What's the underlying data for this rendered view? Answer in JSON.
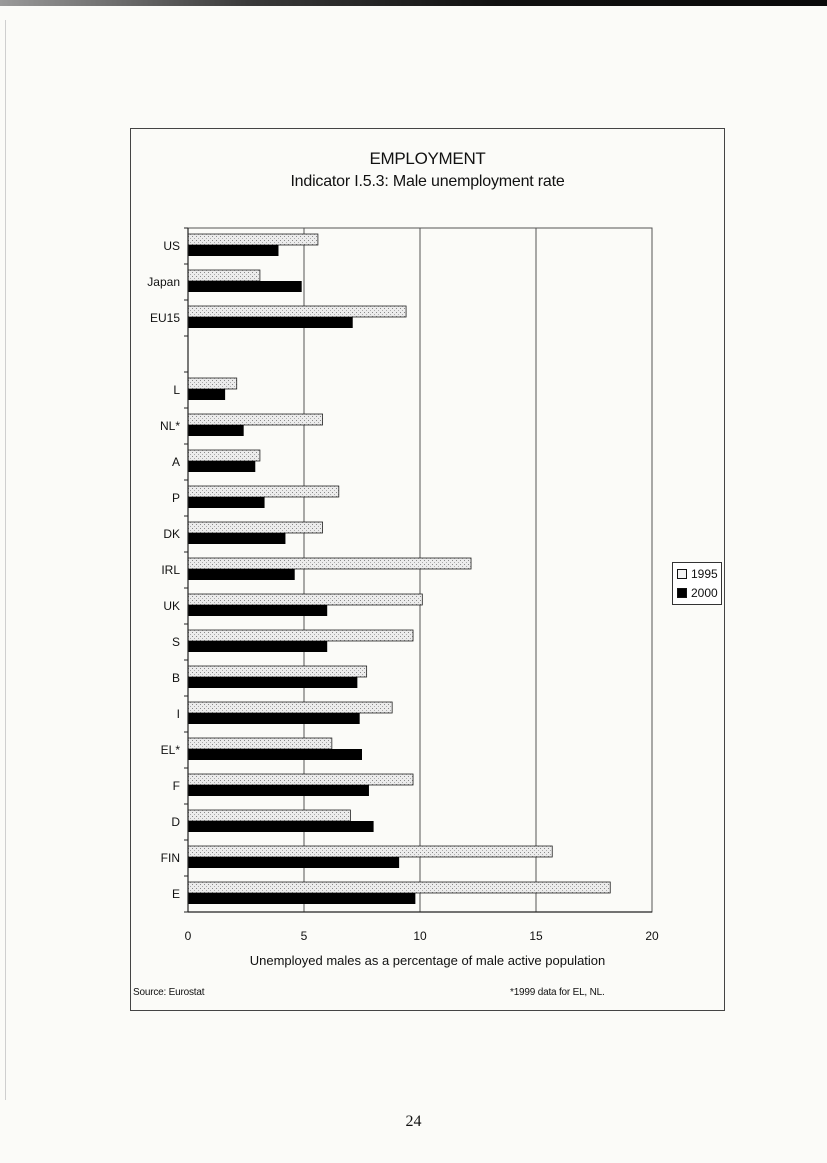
{
  "page_number": "24",
  "footer": {
    "source": "Source: Eurostat",
    "note": "*1999 data for EL, NL."
  },
  "colors": {
    "series_1995": "#e6e6e6",
    "series_2000": "#000000",
    "gridline": "#555555"
  },
  "chart_data": {
    "type": "bar",
    "orientation": "horizontal",
    "title": "EMPLOYMENT",
    "subtitle": "Indicator I.5.3: Male unemployment rate",
    "xlabel": "Unemployed males as a percentage of male active population",
    "ylabel": "",
    "xlim": [
      0,
      20
    ],
    "xticks": [
      0,
      5,
      10,
      15,
      20
    ],
    "gridlines": "vertical",
    "legend_position": "right",
    "categories": [
      "US",
      "Japan",
      "EU15",
      "",
      "L",
      "NL*",
      "A",
      "P",
      "DK",
      "IRL",
      "UK",
      "S",
      "B",
      "I",
      "EL*",
      "F",
      "D",
      "FIN",
      "E"
    ],
    "series": [
      {
        "name": "1995",
        "values": [
          5.6,
          3.1,
          9.4,
          null,
          2.1,
          5.8,
          3.1,
          6.5,
          5.8,
          12.2,
          10.1,
          9.7,
          7.7,
          8.8,
          6.2,
          9.7,
          7.0,
          15.7,
          18.2
        ]
      },
      {
        "name": "2000",
        "values": [
          3.9,
          4.9,
          7.1,
          null,
          1.6,
          2.4,
          2.9,
          3.3,
          4.2,
          4.6,
          6.0,
          6.0,
          7.3,
          7.4,
          7.5,
          7.8,
          8.0,
          9.1,
          9.8
        ]
      }
    ]
  }
}
